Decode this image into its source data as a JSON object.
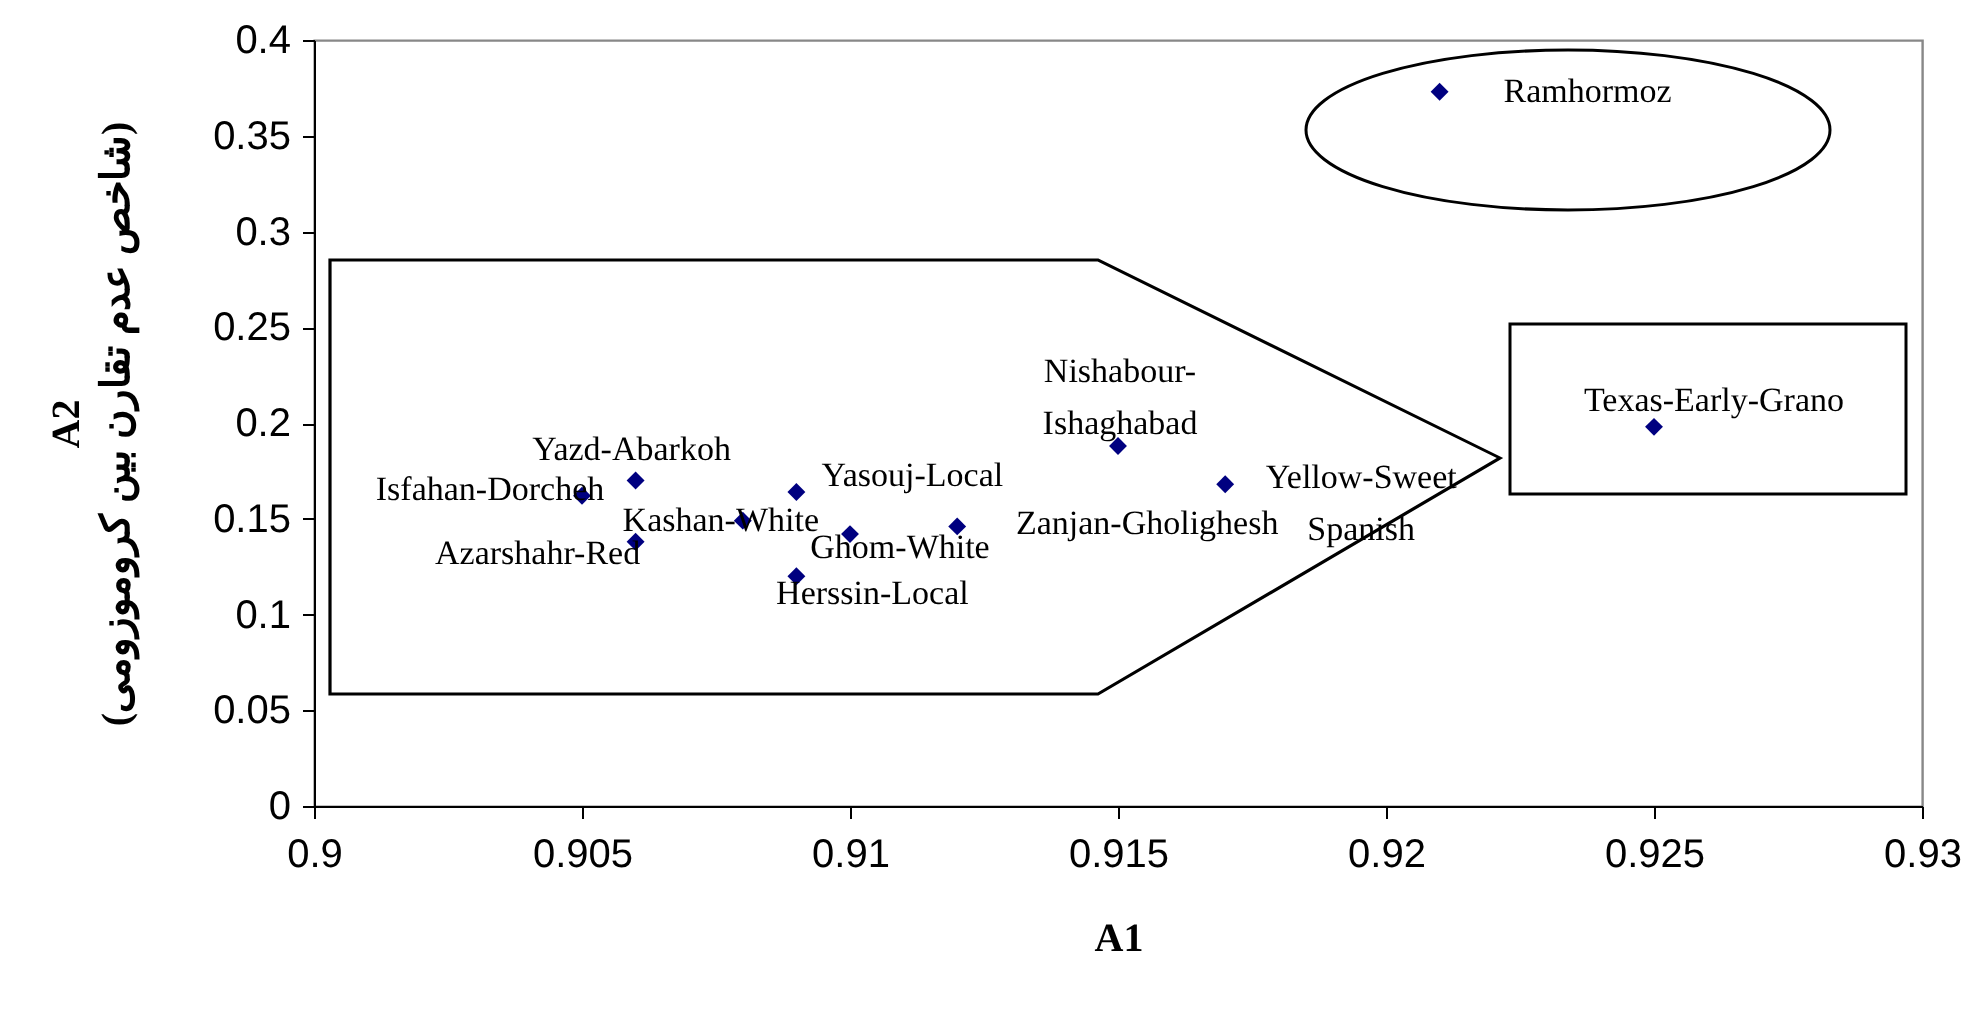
{
  "chart_data": {
    "type": "scatter",
    "xlabel": "A1",
    "ylabel": "A2\n(شاخص عدم تقارن بین کروموزومی)",
    "x": [
      0.905,
      0.906,
      0.906,
      0.908,
      0.909,
      0.91,
      0.909,
      0.912,
      0.915,
      0.917,
      0.921,
      0.925
    ],
    "values": [
      0.162,
      0.17,
      0.138,
      0.149,
      0.164,
      0.142,
      0.12,
      0.146,
      0.188,
      0.168,
      0.373,
      0.198
    ],
    "color": "#000080",
    "marker": "diamond",
    "xlim": [
      0.9,
      0.93
    ],
    "xticks": [
      0.9,
      0.905,
      0.91,
      0.915,
      0.92,
      0.925,
      0.93
    ],
    "ylim": [
      0,
      0.4
    ],
    "yticks": [
      0,
      0.05,
      0.1,
      0.15,
      0.2,
      0.25,
      0.3,
      0.35,
      0.4
    ],
    "grid": false,
    "annotations": [
      {
        "text": "Isfahan-Dorcheh",
        "x": 0.905,
        "y": 0.162
      },
      {
        "text": "Yazd-Abarkoh",
        "x": 0.906,
        "y": 0.17
      },
      {
        "text": "Azarshahr-Red",
        "x": 0.906,
        "y": 0.138
      },
      {
        "text": "Kashan-White",
        "x": 0.908,
        "y": 0.149
      },
      {
        "text": "Yasouj-Local",
        "x": 0.909,
        "y": 0.164
      },
      {
        "text": "Ghom-White",
        "x": 0.91,
        "y": 0.142
      },
      {
        "text": "Herssin-Local",
        "x": 0.909,
        "y": 0.12
      },
      {
        "text": "Zanjan-Gholighesh",
        "x": 0.912,
        "y": 0.146
      },
      {
        "text": "Nishabour-\nIshaghabad",
        "x": 0.915,
        "y": 0.188
      },
      {
        "text": "Yellow-Sweet\nSpanish",
        "x": 0.917,
        "y": 0.168
      },
      {
        "text": "Ramhormoz",
        "x": 0.921,
        "y": 0.373
      },
      {
        "text": "Texas-Early-Grano",
        "x": 0.925,
        "y": 0.198
      }
    ]
  }
}
